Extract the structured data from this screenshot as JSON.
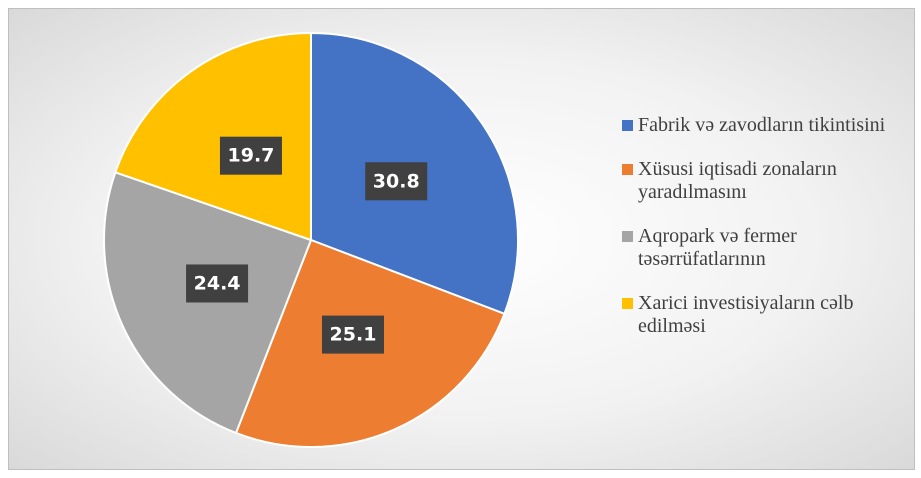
{
  "chart_data": {
    "type": "pie",
    "categories": [
      "Fabrik və zavodların tikintisini",
      "Xüsusi iqtisadi zonaların yaradılmasını",
      "Aqropark və fermer təsərrüfatlarının",
      "Xarici investisiyaların cəlb edilməsi"
    ],
    "values": [
      30.8,
      25.1,
      24.4,
      19.7
    ],
    "colors": [
      "#4472c4",
      "#ed7d31",
      "#a5a5a5",
      "#ffc000"
    ],
    "legend": "right"
  }
}
